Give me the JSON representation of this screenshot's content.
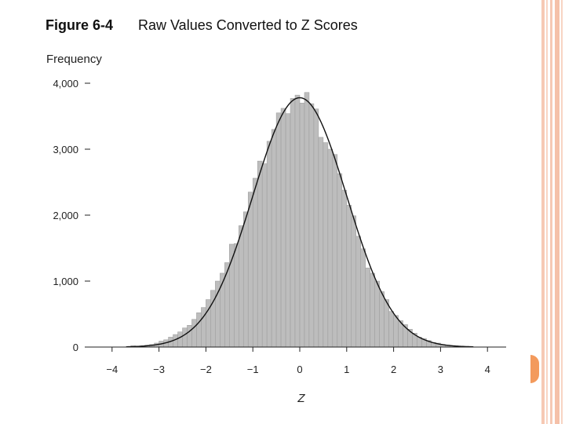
{
  "figure": {
    "number": "Figure 6-4",
    "caption": "Raw Values Converted to Z Scores"
  },
  "colors": {
    "bar_fill": "#bdbdbd",
    "bar_stroke": "#9a9a9a",
    "curve": "#111111",
    "border_stripes": "#f6c9b4",
    "accent_tab": "#f39a5c"
  },
  "chart_data": {
    "type": "bar",
    "title": "Raw Values Converted to Z Scores",
    "xlabel": "Z",
    "ylabel": "Frequency",
    "xlim": [
      -4.4,
      4.4
    ],
    "ylim": [
      0,
      4000
    ],
    "x_ticks": [
      -4,
      -3,
      -2,
      -1,
      0,
      1,
      2,
      3,
      4
    ],
    "x_tick_labels": [
      "−4",
      "−3",
      "−2",
      "−1",
      "0",
      "1",
      "2",
      "3",
      "4"
    ],
    "y_ticks": [
      0,
      1000,
      2000,
      3000,
      4000
    ],
    "y_tick_labels": [
      "0",
      "1,000",
      "2,000",
      "3,000",
      "4,000"
    ],
    "grid": false,
    "legend": "none",
    "bin_width": 0.1,
    "bin_starts": [
      -3.6,
      -3.5,
      -3.4,
      -3.3,
      -3.2,
      -3.1,
      -3.0,
      -2.9,
      -2.8,
      -2.7,
      -2.6,
      -2.5,
      -2.4,
      -2.3,
      -2.2,
      -2.1,
      -2.0,
      -1.9,
      -1.8,
      -1.7,
      -1.6,
      -1.5,
      -1.4,
      -1.3,
      -1.2,
      -1.1,
      -1.0,
      -0.9,
      -0.8,
      -0.7,
      -0.6,
      -0.5,
      -0.4,
      -0.3,
      -0.2,
      -0.1,
      0.0,
      0.1,
      0.2,
      0.3,
      0.4,
      0.5,
      0.6,
      0.7,
      0.8,
      0.9,
      1.0,
      1.1,
      1.2,
      1.3,
      1.4,
      1.5,
      1.6,
      1.7,
      1.8,
      1.9,
      2.0,
      2.1,
      2.2,
      2.3,
      2.4,
      2.5,
      2.6,
      2.7,
      2.8,
      2.9,
      3.0,
      3.1,
      3.2,
      3.3,
      3.4,
      3.5
    ],
    "values": [
      20,
      15,
      20,
      30,
      40,
      60,
      90,
      110,
      150,
      190,
      230,
      290,
      330,
      420,
      520,
      600,
      720,
      860,
      1000,
      1120,
      1280,
      1560,
      1570,
      1840,
      2050,
      2350,
      2560,
      2820,
      2780,
      3120,
      3300,
      3550,
      3620,
      3540,
      3770,
      3820,
      3700,
      3860,
      3690,
      3610,
      3180,
      3100,
      3000,
      2920,
      2630,
      2380,
      2150,
      1990,
      1680,
      1490,
      1200,
      1120,
      1000,
      840,
      720,
      540,
      480,
      400,
      340,
      270,
      210,
      150,
      130,
      100,
      70,
      60,
      40,
      30,
      20,
      10,
      5,
      5
    ],
    "overlay_curve": {
      "type": "normal",
      "mean": 0,
      "sd": 1,
      "peak": 3780
    }
  }
}
